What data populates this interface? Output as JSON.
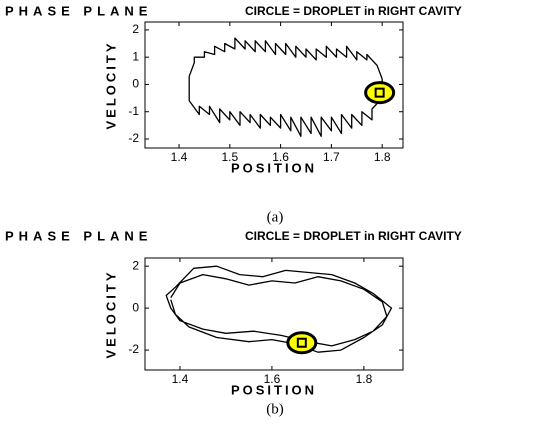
{
  "chart_data": [
    {
      "type": "line",
      "title": "PHASE PLANE",
      "subtitle": "CIRCLE = DROPLET in RIGHT CAVITY",
      "xlabel": "POSITION",
      "ylabel": "VELOCITY",
      "caption": "(a)",
      "xlim": [
        1.333,
        1.841
      ],
      "ylim": [
        -2.33,
        2.29
      ],
      "xticks": [
        1.4,
        1.5,
        1.6,
        1.7,
        1.8
      ],
      "yticks": [
        -2,
        -1,
        0,
        1,
        2
      ],
      "series": [
        {
          "color": "#000000",
          "x": [
            1.42,
            1.43,
            1.43,
            1.45,
            1.45,
            1.47,
            1.47,
            1.49,
            1.49,
            1.51,
            1.51,
            1.53,
            1.53,
            1.55,
            1.55,
            1.57,
            1.57,
            1.59,
            1.59,
            1.61,
            1.61,
            1.63,
            1.63,
            1.65,
            1.65,
            1.67,
            1.67,
            1.69,
            1.69,
            1.71,
            1.71,
            1.73,
            1.73,
            1.75,
            1.75,
            1.77,
            1.77,
            1.79,
            1.8,
            1.8,
            1.79,
            1.78,
            1.78,
            1.76,
            1.76,
            1.74,
            1.74,
            1.72,
            1.72,
            1.7,
            1.7,
            1.68,
            1.68,
            1.66,
            1.66,
            1.64,
            1.64,
            1.62,
            1.62,
            1.6,
            1.6,
            1.58,
            1.58,
            1.56,
            1.56,
            1.54,
            1.54,
            1.52,
            1.52,
            1.5,
            1.5,
            1.48,
            1.48,
            1.46,
            1.46,
            1.44,
            1.44,
            1.42,
            1.42
          ],
          "values": [
            0.3,
            0.8,
            1.0,
            1.0,
            1.2,
            1.1,
            1.4,
            1.2,
            1.5,
            1.3,
            1.7,
            1.3,
            1.6,
            1.2,
            1.6,
            1.2,
            1.6,
            1.1,
            1.5,
            1.1,
            1.5,
            1.0,
            1.4,
            1.0,
            1.3,
            0.9,
            1.3,
            1.0,
            1.4,
            1.0,
            1.3,
            1.0,
            1.4,
            0.9,
            1.2,
            0.9,
            1.1,
            0.7,
            0.2,
            -0.4,
            -0.7,
            -0.9,
            -1.3,
            -1.0,
            -1.5,
            -1.1,
            -1.6,
            -1.1,
            -1.8,
            -1.2,
            -1.7,
            -1.2,
            -1.9,
            -1.2,
            -1.8,
            -1.2,
            -1.9,
            -1.2,
            -1.7,
            -1.1,
            -1.6,
            -1.2,
            -1.5,
            -1.1,
            -1.6,
            -1.1,
            -1.4,
            -1.0,
            -1.5,
            -1.0,
            -1.3,
            -0.9,
            -1.4,
            -0.8,
            -1.1,
            -0.8,
            -1.1,
            -0.6,
            0.3
          ]
        }
      ],
      "marker": {
        "x": 1.795,
        "y": -0.3,
        "color": "#ffff00"
      }
    },
    {
      "type": "line",
      "title": "PHASE PLANE",
      "subtitle": "CIRCLE = DROPLET in RIGHT CAVITY",
      "xlabel": "POSITION",
      "ylabel": "VELOCITY",
      "caption": "(b)",
      "xlim": [
        1.324,
        1.885
      ],
      "ylim": [
        -2.95,
        2.39
      ],
      "xticks": [
        1.4,
        1.6,
        1.8
      ],
      "yticks": [
        -2,
        0,
        2
      ],
      "series": [
        {
          "color": "#000000",
          "x": [
            1.38,
            1.4,
            1.45,
            1.5,
            1.55,
            1.6,
            1.65,
            1.7,
            1.75,
            1.8,
            1.84,
            1.85,
            1.82,
            1.78,
            1.73,
            1.68,
            1.62,
            1.56,
            1.5,
            1.45,
            1.4,
            1.38,
            1.37,
            1.39,
            1.43,
            1.48,
            1.53,
            1.58,
            1.63,
            1.68,
            1.73,
            1.78,
            1.82,
            1.86,
            1.84,
            1.8,
            1.75,
            1.7,
            1.65,
            1.6,
            1.55,
            1.48,
            1.42,
            1.39,
            1.38
          ],
          "values": [
            0.5,
            1.2,
            1.6,
            1.4,
            1.1,
            1.3,
            1.2,
            1.5,
            1.3,
            0.9,
            0.3,
            -0.4,
            -1.1,
            -1.5,
            -1.8,
            -1.6,
            -1.3,
            -1.1,
            -1.2,
            -1.0,
            -0.6,
            0.0,
            0.6,
            1.0,
            1.9,
            2.0,
            1.6,
            1.5,
            1.8,
            1.7,
            1.6,
            1.2,
            0.7,
            0.0,
            -0.8,
            -1.4,
            -2.0,
            -2.1,
            -1.7,
            -1.5,
            -1.6,
            -1.4,
            -0.9,
            -0.3,
            0.4
          ]
        }
      ],
      "marker": {
        "x": 1.665,
        "y": -1.65,
        "color": "#ffff00"
      }
    }
  ]
}
